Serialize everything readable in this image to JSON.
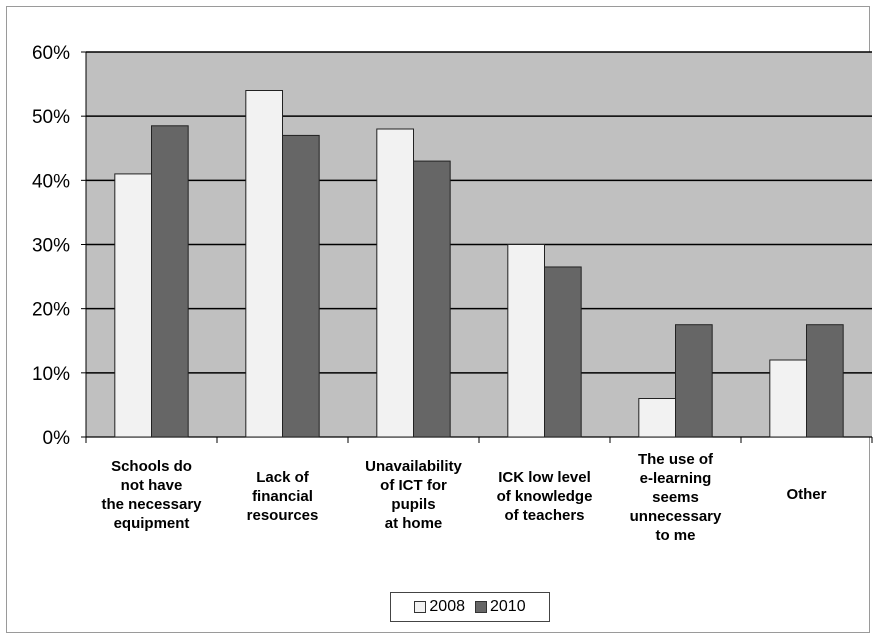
{
  "chart_data": {
    "type": "bar",
    "categories": [
      "Schools do\nnot have\nthe necessary\nequipment",
      "Lack of\nfinancial\nresources",
      "Unavailability\nof ICT for\npupils\nat home",
      "ICK low level\nof knowledge\nof teachers",
      "The use of\ne-learning\nseems\nunnecessary\nto me",
      "Other"
    ],
    "series": [
      {
        "name": "2008",
        "values": [
          41,
          54,
          48,
          30,
          6,
          12
        ],
        "color": "#f2f2f2"
      },
      {
        "name": "2010",
        "values": [
          48.5,
          47,
          43,
          26.5,
          17.5,
          17.5
        ],
        "color": "#666666"
      }
    ],
    "ylim": [
      0,
      60
    ],
    "yticks": [
      "0%",
      "10%",
      "20%",
      "30%",
      "40%",
      "50%",
      "60%"
    ],
    "grid": true,
    "plot_background": "#c0c0c0",
    "legend_position": "bottom-center"
  }
}
